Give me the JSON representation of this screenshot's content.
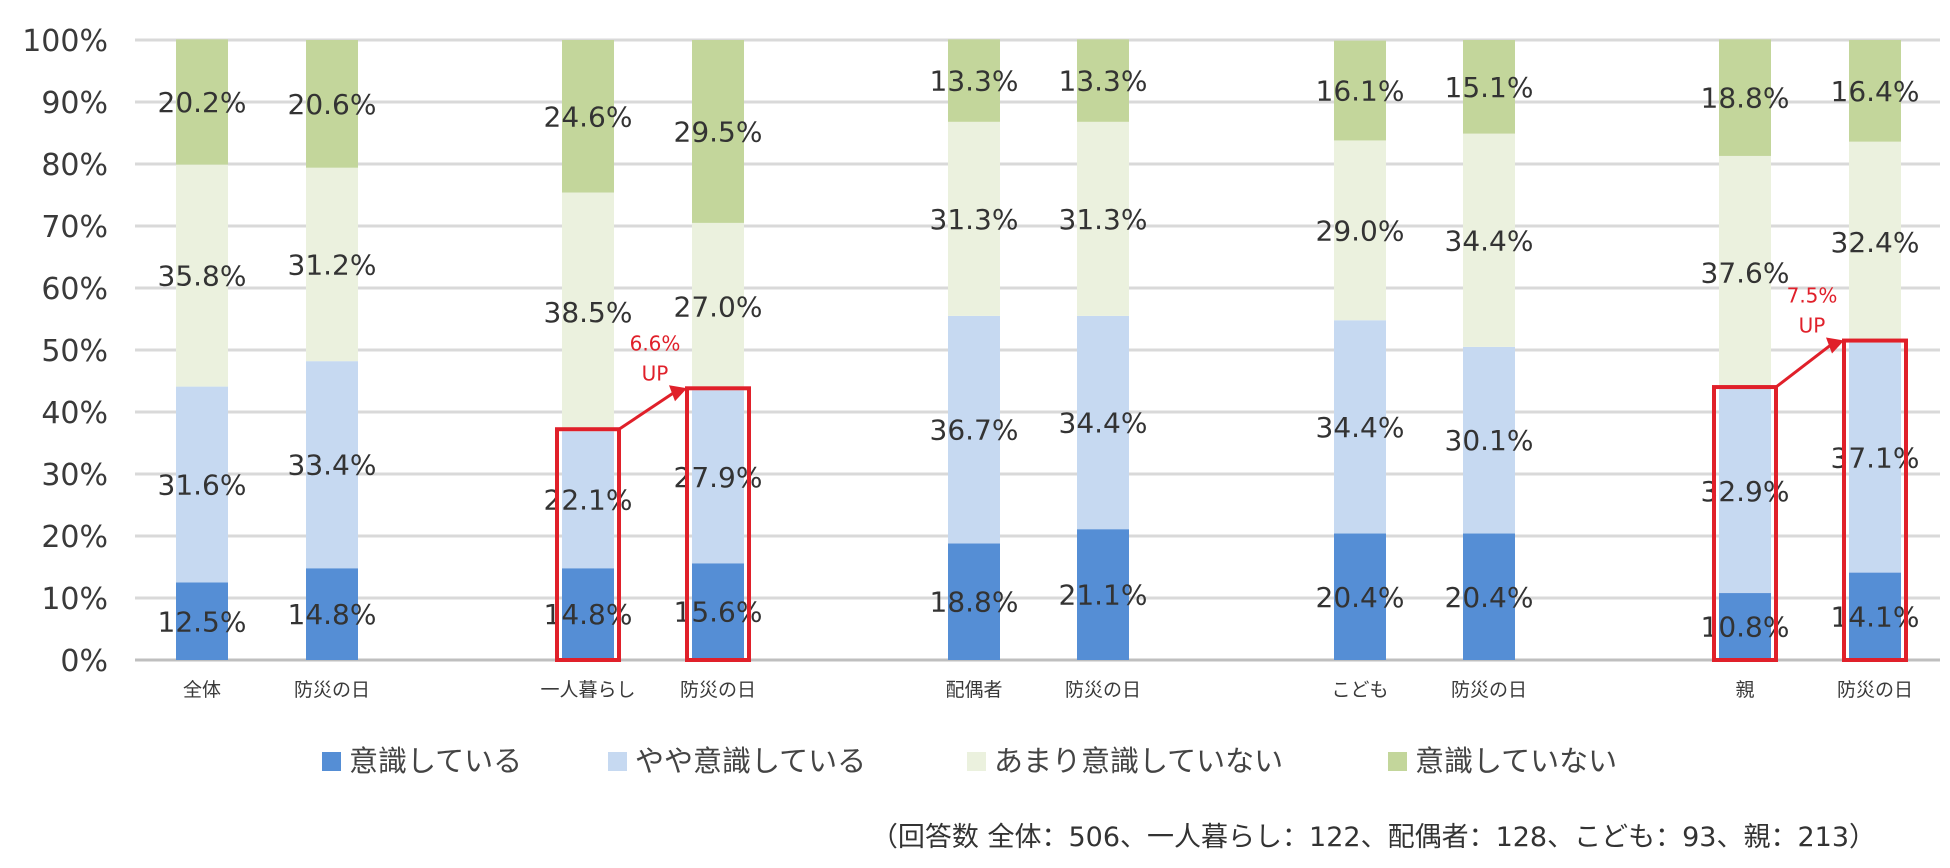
{
  "chart_data": {
    "type": "bar",
    "stacked": true,
    "percent_scale": true,
    "ylim": [
      0,
      100
    ],
    "yticks": [
      "0%",
      "10%",
      "20%",
      "30%",
      "40%",
      "50%",
      "60%",
      "70%",
      "80%",
      "90%",
      "100%"
    ],
    "grid": true,
    "legend_position": "bottom",
    "categories": [
      "全体",
      "防災の日",
      "一人暮らし",
      "防災の日",
      "配偶者",
      "防災の日",
      "こども",
      "防災の日",
      "親",
      "防災の日"
    ],
    "series": [
      {
        "name": "意識している",
        "color": "#558ed5",
        "values": [
          12.5,
          14.8,
          14.8,
          15.6,
          18.8,
          21.1,
          20.4,
          20.4,
          10.8,
          14.1
        ],
        "labels": [
          "12.5%",
          "14.8%",
          "14.8%",
          "15.6%",
          "18.8%",
          "21.1%",
          "20.4%",
          "20.4%",
          "10.8%",
          "14.1%"
        ]
      },
      {
        "name": "やや意識している",
        "color": "#c6d9f1",
        "values": [
          31.6,
          33.4,
          22.1,
          27.9,
          36.7,
          34.4,
          34.4,
          30.1,
          32.9,
          37.1
        ],
        "labels": [
          "31.6%",
          "33.4%",
          "22.1%",
          "27.9%",
          "36.7%",
          "34.4%",
          "34.4%",
          "30.1%",
          "32.9%",
          "37.1%"
        ]
      },
      {
        "name": "あまり意識していない",
        "color": "#ebf1de",
        "values": [
          35.8,
          31.2,
          38.5,
          27.0,
          31.3,
          31.3,
          29.0,
          34.4,
          37.6,
          32.4
        ],
        "labels": [
          "35.8%",
          "31.2%",
          "38.5%",
          "27.0%",
          "31.3%",
          "31.3%",
          "29.0%",
          "34.4%",
          "37.6%",
          "32.4%"
        ]
      },
      {
        "name": "意識していない",
        "color": "#c3d69b",
        "values": [
          20.2,
          20.6,
          24.6,
          29.5,
          13.3,
          13.3,
          16.1,
          15.1,
          18.8,
          16.4
        ],
        "labels": [
          "20.2%",
          "20.6%",
          "24.6%",
          "29.5%",
          "13.3%",
          "13.3%",
          "16.1%",
          "15.1%",
          "18.8%",
          "16.4%"
        ]
      }
    ],
    "annotations": [
      {
        "from_bar": 2,
        "to_bar": 3,
        "text": [
          "6.6%",
          "UP"
        ],
        "color": "#e0202a"
      },
      {
        "from_bar": 8,
        "to_bar": 9,
        "text": [
          "7.5%",
          "UP"
        ],
        "color": "#e0202a"
      }
    ],
    "footnote": "（回答数 全体：506、一人暮らし：122、配偶者：128、こども：93、親：213）"
  }
}
